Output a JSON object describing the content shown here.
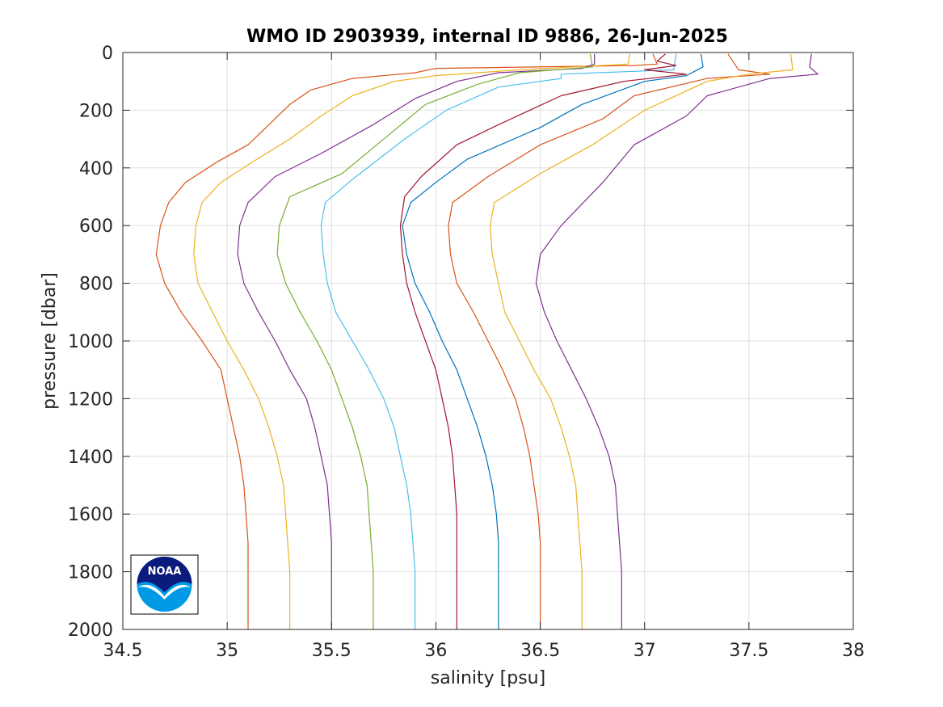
{
  "chart_data": {
    "type": "line",
    "title": "WMO ID 2903939, internal ID 9886, 26-Jun-2025",
    "xlabel": "salinity [psu]",
    "ylabel": "pressure [dbar]",
    "xlim": [
      34.5,
      38
    ],
    "ylim": [
      0,
      2000
    ],
    "y_reversed": true,
    "grid": true,
    "x_ticks": [
      34.5,
      35,
      35.5,
      36,
      36.5,
      37,
      37.5,
      38
    ],
    "x_tick_labels": [
      "34.5",
      "35",
      "35.5",
      "36",
      "36.5",
      "37",
      "37.5",
      "38"
    ],
    "y_ticks": [
      0,
      200,
      400,
      600,
      800,
      1000,
      1200,
      1400,
      1600,
      1800,
      2000
    ],
    "y_tick_labels": [
      "0",
      "200",
      "400",
      "600",
      "800",
      "1000",
      "1200",
      "1400",
      "1600",
      "1800",
      "2000"
    ],
    "series": [
      {
        "color": "#D95319",
        "points": [
          [
            37.04,
            5
          ],
          [
            37.06,
            40
          ],
          [
            36.95,
            45
          ],
          [
            36.0,
            55
          ],
          [
            35.9,
            70
          ],
          [
            35.6,
            90
          ],
          [
            35.4,
            130
          ],
          [
            35.3,
            180
          ],
          [
            35.2,
            250
          ],
          [
            35.1,
            320
          ],
          [
            34.95,
            380
          ],
          [
            34.8,
            450
          ],
          [
            34.72,
            520
          ],
          [
            34.68,
            600
          ],
          [
            34.66,
            700
          ],
          [
            34.7,
            800
          ],
          [
            34.78,
            900
          ],
          [
            34.88,
            1000
          ],
          [
            34.97,
            1100
          ],
          [
            35.0,
            1200
          ],
          [
            35.03,
            1300
          ],
          [
            35.06,
            1400
          ],
          [
            35.08,
            1500
          ],
          [
            35.09,
            1600
          ],
          [
            35.1,
            1700
          ],
          [
            35.1,
            1800
          ],
          [
            35.1,
            1900
          ],
          [
            35.1,
            2000
          ]
        ]
      },
      {
        "color": "#EDB120",
        "points": [
          [
            36.93,
            5
          ],
          [
            36.92,
            40
          ],
          [
            36.4,
            60
          ],
          [
            36.0,
            80
          ],
          [
            35.8,
            100
          ],
          [
            35.6,
            150
          ],
          [
            35.45,
            220
          ],
          [
            35.3,
            300
          ],
          [
            35.12,
            380
          ],
          [
            34.97,
            450
          ],
          [
            34.88,
            520
          ],
          [
            34.85,
            600
          ],
          [
            34.84,
            700
          ],
          [
            34.86,
            800
          ],
          [
            34.93,
            900
          ],
          [
            35.0,
            1000
          ],
          [
            35.08,
            1100
          ],
          [
            35.15,
            1200
          ],
          [
            35.2,
            1300
          ],
          [
            35.24,
            1400
          ],
          [
            35.27,
            1500
          ],
          [
            35.28,
            1600
          ],
          [
            35.29,
            1700
          ],
          [
            35.3,
            1800
          ],
          [
            35.3,
            1900
          ],
          [
            35.3,
            2000
          ]
        ]
      },
      {
        "color": "#7E2F8E",
        "points": [
          [
            36.76,
            5
          ],
          [
            36.76,
            40
          ],
          [
            36.7,
            55
          ],
          [
            36.3,
            70
          ],
          [
            36.1,
            100
          ],
          [
            35.9,
            160
          ],
          [
            35.7,
            250
          ],
          [
            35.45,
            350
          ],
          [
            35.23,
            430
          ],
          [
            35.1,
            520
          ],
          [
            35.06,
            600
          ],
          [
            35.05,
            700
          ],
          [
            35.08,
            800
          ],
          [
            35.15,
            900
          ],
          [
            35.23,
            1000
          ],
          [
            35.3,
            1100
          ],
          [
            35.38,
            1200
          ],
          [
            35.42,
            1300
          ],
          [
            35.45,
            1400
          ],
          [
            35.48,
            1500
          ],
          [
            35.49,
            1600
          ],
          [
            35.5,
            1700
          ],
          [
            35.5,
            1800
          ],
          [
            35.5,
            1900
          ],
          [
            35.5,
            2000
          ]
        ]
      },
      {
        "color": "#77AC30",
        "points": [
          [
            36.74,
            5
          ],
          [
            36.75,
            50
          ],
          [
            36.4,
            70
          ],
          [
            36.2,
            110
          ],
          [
            35.95,
            180
          ],
          [
            35.75,
            300
          ],
          [
            35.55,
            420
          ],
          [
            35.3,
            500
          ],
          [
            35.25,
            600
          ],
          [
            35.24,
            700
          ],
          [
            35.28,
            800
          ],
          [
            35.35,
            900
          ],
          [
            35.43,
            1000
          ],
          [
            35.5,
            1100
          ],
          [
            35.55,
            1200
          ],
          [
            35.6,
            1300
          ],
          [
            35.64,
            1400
          ],
          [
            35.67,
            1500
          ],
          [
            35.68,
            1600
          ],
          [
            35.69,
            1700
          ],
          [
            35.7,
            1800
          ],
          [
            35.7,
            1900
          ],
          [
            35.7,
            2000
          ]
        ]
      },
      {
        "color": "#4DBEEE",
        "points": [
          [
            37.15,
            5
          ],
          [
            37.14,
            60
          ],
          [
            36.6,
            75
          ],
          [
            36.6,
            90
          ],
          [
            36.3,
            120
          ],
          [
            36.05,
            200
          ],
          [
            35.85,
            300
          ],
          [
            35.6,
            440
          ],
          [
            35.47,
            520
          ],
          [
            35.45,
            600
          ],
          [
            35.46,
            700
          ],
          [
            35.48,
            800
          ],
          [
            35.52,
            900
          ],
          [
            35.6,
            1000
          ],
          [
            35.68,
            1100
          ],
          [
            35.75,
            1200
          ],
          [
            35.8,
            1300
          ],
          [
            35.83,
            1400
          ],
          [
            35.86,
            1500
          ],
          [
            35.88,
            1600
          ],
          [
            35.89,
            1700
          ],
          [
            35.9,
            1800
          ],
          [
            35.9,
            1900
          ],
          [
            35.9,
            2000
          ]
        ]
      },
      {
        "color": "#A2142F",
        "points": [
          [
            37.1,
            5
          ],
          [
            37.06,
            30
          ],
          [
            37.15,
            45
          ],
          [
            37.0,
            60
          ],
          [
            37.2,
            75
          ],
          [
            36.9,
            100
          ],
          [
            36.6,
            150
          ],
          [
            36.3,
            250
          ],
          [
            36.1,
            320
          ],
          [
            35.93,
            430
          ],
          [
            35.85,
            500
          ],
          [
            35.83,
            600
          ],
          [
            35.84,
            700
          ],
          [
            35.86,
            800
          ],
          [
            35.9,
            900
          ],
          [
            35.95,
            1000
          ],
          [
            36.0,
            1100
          ],
          [
            36.03,
            1200
          ],
          [
            36.06,
            1300
          ],
          [
            36.08,
            1400
          ],
          [
            36.09,
            1500
          ],
          [
            36.1,
            1600
          ],
          [
            36.1,
            1700
          ],
          [
            36.1,
            1800
          ],
          [
            36.1,
            1900
          ],
          [
            36.1,
            2000
          ]
        ]
      },
      {
        "color": "#0072BD",
        "points": [
          [
            37.27,
            5
          ],
          [
            37.28,
            50
          ],
          [
            37.2,
            80
          ],
          [
            37.0,
            100
          ],
          [
            36.7,
            180
          ],
          [
            36.5,
            260
          ],
          [
            36.15,
            370
          ],
          [
            36.0,
            450
          ],
          [
            35.88,
            520
          ],
          [
            35.84,
            600
          ],
          [
            35.86,
            700
          ],
          [
            35.9,
            800
          ],
          [
            35.97,
            900
          ],
          [
            36.03,
            1000
          ],
          [
            36.1,
            1100
          ],
          [
            36.15,
            1200
          ],
          [
            36.2,
            1300
          ],
          [
            36.24,
            1400
          ],
          [
            36.27,
            1500
          ],
          [
            36.29,
            1600
          ],
          [
            36.3,
            1700
          ],
          [
            36.3,
            1800
          ],
          [
            36.3,
            1900
          ],
          [
            36.3,
            2000
          ]
        ]
      },
      {
        "color": "#D95319",
        "points": [
          [
            37.4,
            5
          ],
          [
            37.45,
            60
          ],
          [
            37.6,
            75
          ],
          [
            37.3,
            90
          ],
          [
            36.95,
            150
          ],
          [
            36.8,
            230
          ],
          [
            36.5,
            320
          ],
          [
            36.25,
            430
          ],
          [
            36.08,
            520
          ],
          [
            36.06,
            600
          ],
          [
            36.07,
            700
          ],
          [
            36.1,
            800
          ],
          [
            36.18,
            900
          ],
          [
            36.25,
            1000
          ],
          [
            36.32,
            1100
          ],
          [
            36.38,
            1200
          ],
          [
            36.42,
            1300
          ],
          [
            36.45,
            1400
          ],
          [
            36.47,
            1500
          ],
          [
            36.49,
            1600
          ],
          [
            36.5,
            1700
          ],
          [
            36.5,
            1800
          ],
          [
            36.5,
            1900
          ],
          [
            36.5,
            2000
          ]
        ]
      },
      {
        "color": "#EDB120",
        "points": [
          [
            37.7,
            5
          ],
          [
            37.71,
            60
          ],
          [
            37.5,
            75
          ],
          [
            37.3,
            100
          ],
          [
            37.0,
            200
          ],
          [
            36.75,
            320
          ],
          [
            36.5,
            420
          ],
          [
            36.28,
            520
          ],
          [
            36.26,
            600
          ],
          [
            36.27,
            700
          ],
          [
            36.3,
            800
          ],
          [
            36.33,
            900
          ],
          [
            36.4,
            1000
          ],
          [
            36.47,
            1100
          ],
          [
            36.55,
            1200
          ],
          [
            36.6,
            1300
          ],
          [
            36.64,
            1400
          ],
          [
            36.67,
            1500
          ],
          [
            36.68,
            1600
          ],
          [
            36.69,
            1700
          ],
          [
            36.7,
            1800
          ],
          [
            36.7,
            1900
          ],
          [
            36.7,
            2000
          ]
        ]
      },
      {
        "color": "#7E2F8E",
        "points": [
          [
            37.8,
            5
          ],
          [
            37.79,
            50
          ],
          [
            37.83,
            75
          ],
          [
            37.6,
            90
          ],
          [
            37.3,
            150
          ],
          [
            37.2,
            220
          ],
          [
            36.95,
            320
          ],
          [
            36.8,
            450
          ],
          [
            36.6,
            600
          ],
          [
            36.5,
            700
          ],
          [
            36.48,
            800
          ],
          [
            36.52,
            900
          ],
          [
            36.58,
            1000
          ],
          [
            36.65,
            1100
          ],
          [
            36.72,
            1200
          ],
          [
            36.78,
            1300
          ],
          [
            36.83,
            1400
          ],
          [
            36.86,
            1500
          ],
          [
            36.87,
            1600
          ],
          [
            36.88,
            1700
          ],
          [
            36.89,
            1800
          ],
          [
            36.89,
            1900
          ],
          [
            36.89,
            2000
          ]
        ]
      }
    ]
  },
  "logo": {
    "text": "NOAA",
    "colors": {
      "top": "#0a1a7d",
      "bottom": "#0099e6",
      "accent": "#ffffff"
    }
  }
}
